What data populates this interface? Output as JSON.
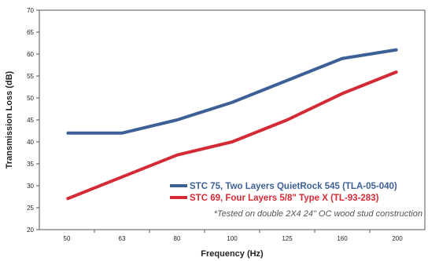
{
  "chart_data": {
    "type": "line",
    "title": "",
    "xlabel": "Frequency (Hz)",
    "ylabel": "Transmission Loss (dB)",
    "categories": [
      "50",
      "63",
      "80",
      "100",
      "125",
      "160",
      "200"
    ],
    "ylim": [
      20,
      70
    ],
    "yticks": [
      "20",
      "25",
      "30",
      "35",
      "40",
      "45",
      "50",
      "55",
      "60",
      "65",
      "70"
    ],
    "grid": false,
    "legend_position": "bottom-right",
    "series": [
      {
        "name": "STC 75, Two Layers QuietRock 545 (TLA-05-040)",
        "color": "#3d6096",
        "values": [
          42,
          42,
          45,
          49,
          54,
          59,
          61
        ]
      },
      {
        "name": "STC 69, Four Layers 5/8\" Type X (TL-93-283)",
        "color": "#d42a35",
        "values": [
          27,
          32,
          37,
          40,
          45,
          51,
          56
        ]
      }
    ],
    "annotation": "*Tested on double 2X4 24\" OC wood stud construction"
  }
}
